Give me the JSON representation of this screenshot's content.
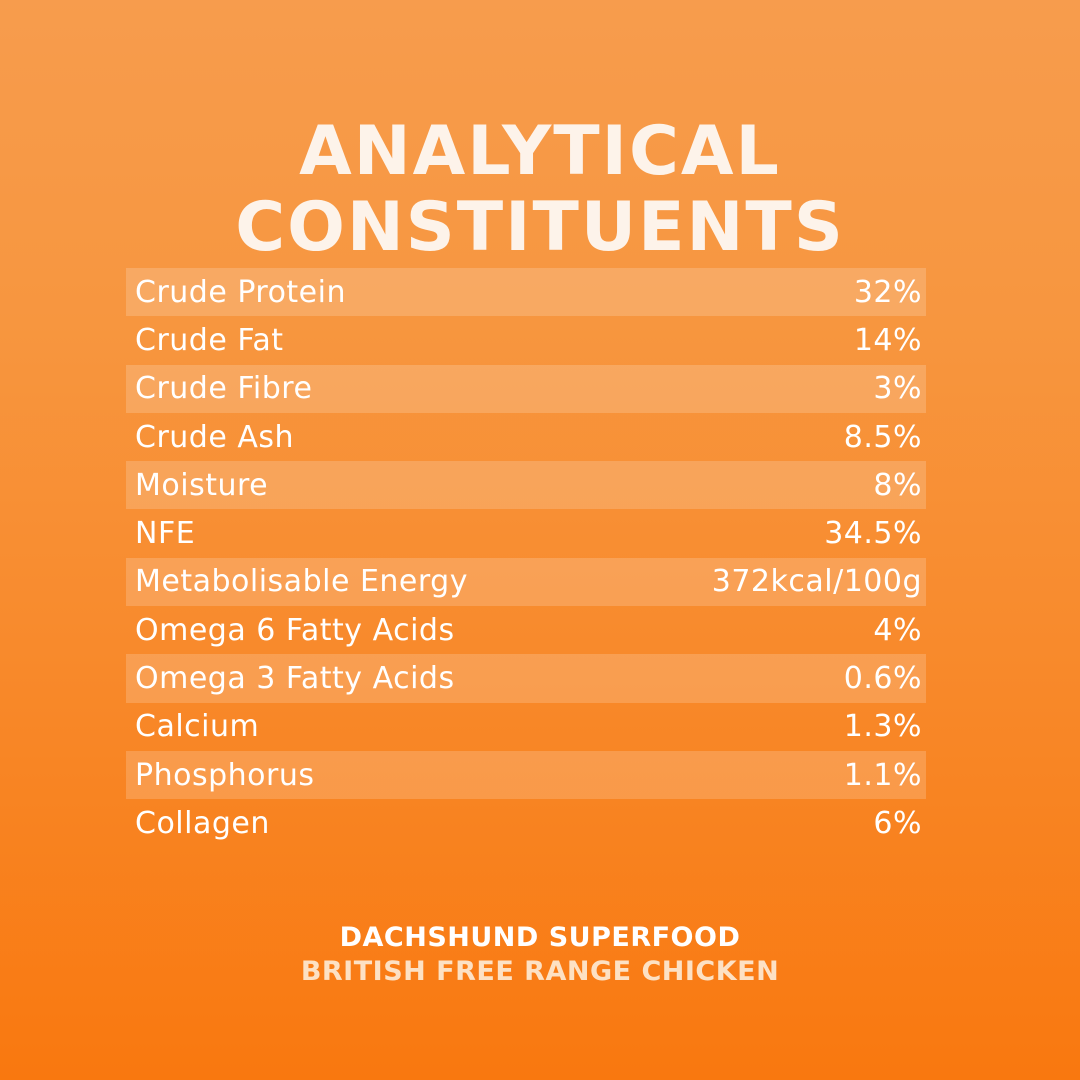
{
  "title": {
    "line1": "ANALYTICAL",
    "line2": "CONSTITUENTS"
  },
  "constituents": [
    {
      "label": "Crude Protein",
      "value": "32%"
    },
    {
      "label": "Crude Fat",
      "value": "14%"
    },
    {
      "label": "Crude Fibre",
      "value": "3%"
    },
    {
      "label": "Crude Ash",
      "value": "8.5%"
    },
    {
      "label": "Moisture",
      "value": "8%"
    },
    {
      "label": "NFE",
      "value": "34.5%"
    },
    {
      "label": "Metabolisable Energy",
      "value": "372kcal/100g"
    },
    {
      "label": "Omega 6 Fatty Acids",
      "value": "4%"
    },
    {
      "label": "Omega 3 Fatty Acids",
      "value": "0.6%"
    },
    {
      "label": "Calcium",
      "value": "1.3%"
    },
    {
      "label": "Phosphorus",
      "value": "1.1%"
    },
    {
      "label": "Collagen",
      "value": "6%"
    }
  ],
  "footer": {
    "product": "DACHSHUND SUPERFOOD",
    "variant": "BRITISH FREE RANGE CHICKEN"
  },
  "colors": {
    "background_top": "#f79c4d",
    "background_bottom": "#f9780f",
    "text": "#ffffff",
    "variant_text": "#fde1c4"
  }
}
